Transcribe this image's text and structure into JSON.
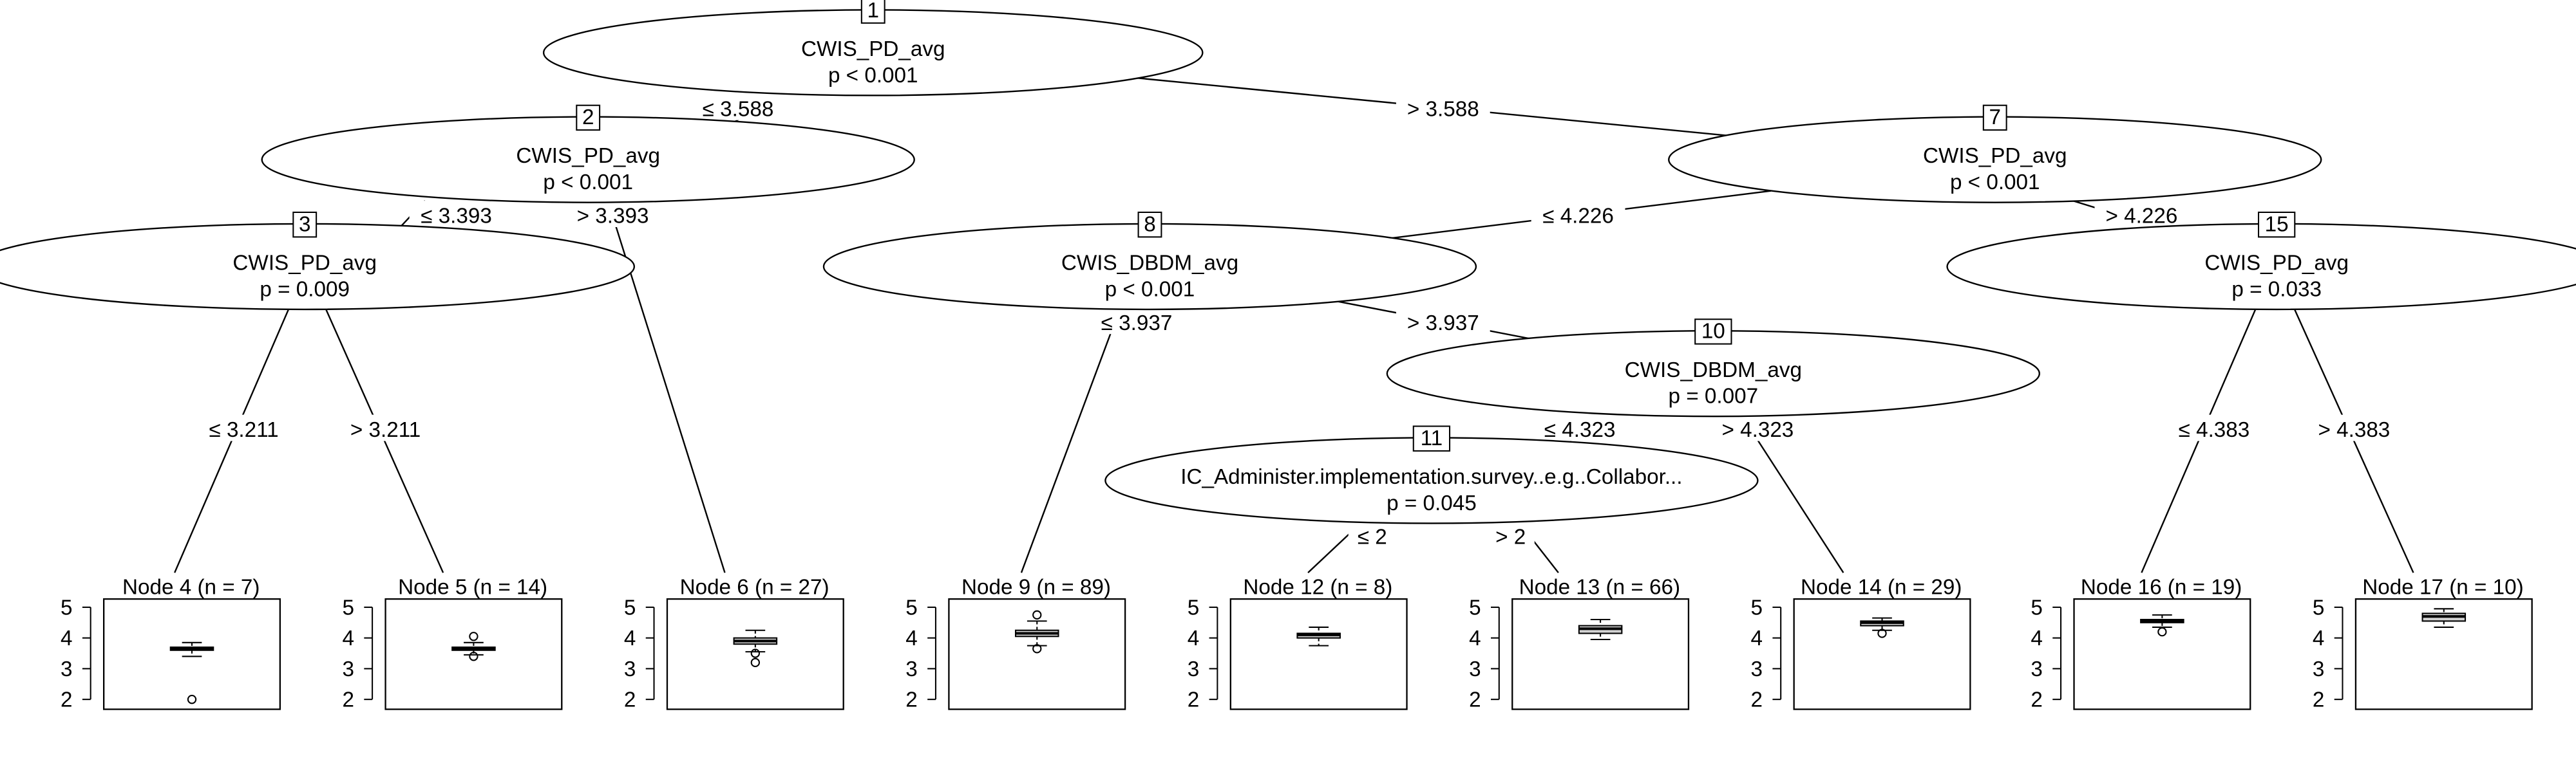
{
  "inner_nodes": [
    {
      "id": "1",
      "id_label": "1",
      "variable": "CWIS_PD_avg",
      "p_label": "p < 0.001"
    },
    {
      "id": "2",
      "id_label": "2",
      "variable": "CWIS_PD_avg",
      "p_label": "p < 0.001"
    },
    {
      "id": "3",
      "id_label": "3",
      "variable": "CWIS_PD_avg",
      "p_label": "p = 0.009"
    },
    {
      "id": "7",
      "id_label": "7",
      "variable": "CWIS_PD_avg",
      "p_label": "p < 0.001"
    },
    {
      "id": "8",
      "id_label": "8",
      "variable": "CWIS_DBDM_avg",
      "p_label": "p < 0.001"
    },
    {
      "id": "10",
      "id_label": "10",
      "variable": "CWIS_DBDM_avg",
      "p_label": "p = 0.007"
    },
    {
      "id": "11",
      "id_label": "11",
      "variable": "IC_Administer.implementation.survey..e.g..Collabor...",
      "p_label": "p = 0.045"
    },
    {
      "id": "15",
      "id_label": "15",
      "variable": "CWIS_PD_avg",
      "p_label": "p = 0.033"
    }
  ],
  "edges": [
    {
      "from": "1",
      "to": "2",
      "label": "≤ 3.588"
    },
    {
      "from": "1",
      "to": "7",
      "label": "> 3.588"
    },
    {
      "from": "2",
      "to": "3",
      "label": "≤ 3.393"
    },
    {
      "from": "2",
      "to": "6",
      "label": "> 3.393"
    },
    {
      "from": "3",
      "to": "4",
      "label": "≤ 3.211"
    },
    {
      "from": "3",
      "to": "5",
      "label": "> 3.211"
    },
    {
      "from": "7",
      "to": "8",
      "label": "≤ 4.226"
    },
    {
      "from": "7",
      "to": "15",
      "label": "> 4.226"
    },
    {
      "from": "8",
      "to": "9",
      "label": "≤ 3.937"
    },
    {
      "from": "8",
      "to": "10",
      "label": "> 3.937"
    },
    {
      "from": "10",
      "to": "11",
      "label": "≤ 4.323"
    },
    {
      "from": "10",
      "to": "14",
      "label": "> 4.323"
    },
    {
      "from": "11",
      "to": "12",
      "label": "≤ 2"
    },
    {
      "from": "11",
      "to": "13",
      "label": "> 2"
    },
    {
      "from": "15",
      "to": "16",
      "label": "≤ 4.383"
    },
    {
      "from": "15",
      "to": "17",
      "label": "> 4.383"
    }
  ],
  "terminal_nodes": [
    {
      "id": "4",
      "title": "Node 4 (n = 7)",
      "box": {
        "min": 3.4,
        "q1": 3.6,
        "median": 3.65,
        "q3": 3.7,
        "max": 3.85,
        "outliers": [
          2.0
        ]
      }
    },
    {
      "id": "5",
      "title": "Node 5 (n = 14)",
      "box": {
        "min": 3.45,
        "q1": 3.6,
        "median": 3.65,
        "q3": 3.7,
        "max": 3.85,
        "outliers": [
          4.05,
          3.4
        ]
      }
    },
    {
      "id": "6",
      "title": "Node 6 (n = 27)",
      "box": {
        "min": 3.55,
        "q1": 3.8,
        "median": 3.9,
        "q3": 4.0,
        "max": 4.25,
        "outliers": [
          3.5,
          3.2
        ]
      }
    },
    {
      "id": "9",
      "title": "Node 9 (n = 89)",
      "box": {
        "min": 3.75,
        "q1": 4.05,
        "median": 4.15,
        "q3": 4.25,
        "max": 4.55,
        "outliers": [
          4.75,
          3.65
        ]
      }
    },
    {
      "id": "12",
      "title": "Node 12 (n = 8)",
      "box": {
        "min": 3.75,
        "q1": 4.0,
        "median": 4.1,
        "q3": 4.15,
        "max": 4.35,
        "outliers": []
      }
    },
    {
      "id": "13",
      "title": "Node 13 (n = 66)",
      "box": {
        "min": 3.95,
        "q1": 4.15,
        "median": 4.3,
        "q3": 4.4,
        "max": 4.6,
        "outliers": []
      }
    },
    {
      "id": "14",
      "title": "Node 14 (n = 29)",
      "box": {
        "min": 4.25,
        "q1": 4.4,
        "median": 4.5,
        "q3": 4.55,
        "max": 4.65,
        "outliers": [
          4.15
        ]
      }
    },
    {
      "id": "16",
      "title": "Node 16 (n = 19)",
      "box": {
        "min": 4.35,
        "q1": 4.5,
        "median": 4.55,
        "q3": 4.6,
        "max": 4.75,
        "outliers": [
          4.2
        ]
      }
    },
    {
      "id": "17",
      "title": "Node 17 (n = 10)",
      "box": {
        "min": 4.35,
        "q1": 4.55,
        "median": 4.7,
        "q3": 4.8,
        "max": 4.95,
        "outliers": []
      }
    }
  ],
  "y_axis": {
    "min": 2,
    "max": 5,
    "ticks": [
      "2",
      "3",
      "4",
      "5"
    ]
  }
}
